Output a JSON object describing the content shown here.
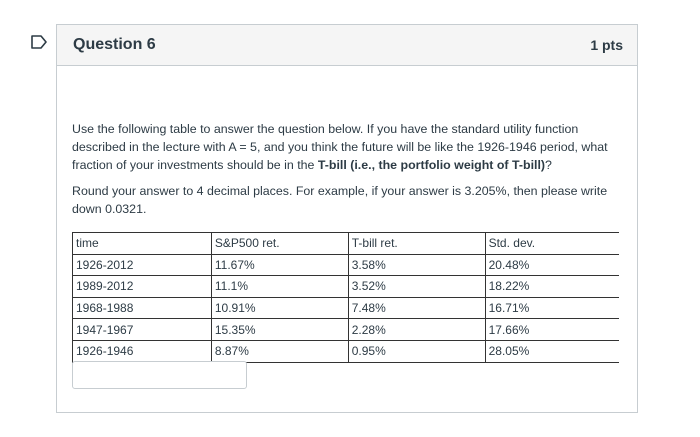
{
  "question": {
    "title": "Question 6",
    "points": "1 pts"
  },
  "prompt": {
    "p1_text": "Use the following table to answer the question below. If you have the standard utility function described in the lecture with A = 5, and you think the future will be like the 1926-1946 period, what fraction of your investments should be in the ",
    "p1_bold": "T-bill (i.e., the portfolio weight of T-bill)",
    "p1_end": "?",
    "p2": "Round your answer to 4 decimal places. For example, if your answer is 3.205%, then please write down 0.0321."
  },
  "table": {
    "headers": [
      "time",
      "S&P500 ret.",
      "T-bill ret.",
      "Std. dev."
    ],
    "rows": [
      [
        "1926-2012",
        "11.67%",
        "3.58%",
        "20.48%"
      ],
      [
        "1989-2012",
        "11.1%",
        "3.52%",
        "18.22%"
      ],
      [
        "1968-1988",
        "10.91%",
        "7.48%",
        "16.71%"
      ],
      [
        "1947-1967",
        "15.35%",
        "2.28%",
        "17.66%"
      ],
      [
        "1926-1946",
        "8.87%",
        "0.95%",
        "28.05%"
      ]
    ]
  },
  "answer": {
    "value": "",
    "placeholder": ""
  },
  "colors": {
    "flag_outline": "#2d3b45",
    "border": "#c7cdd1",
    "header_bg": "#f5f5f5",
    "text": "#2d3b45"
  },
  "icons": {
    "flag": "bookmark-flag-icon"
  }
}
